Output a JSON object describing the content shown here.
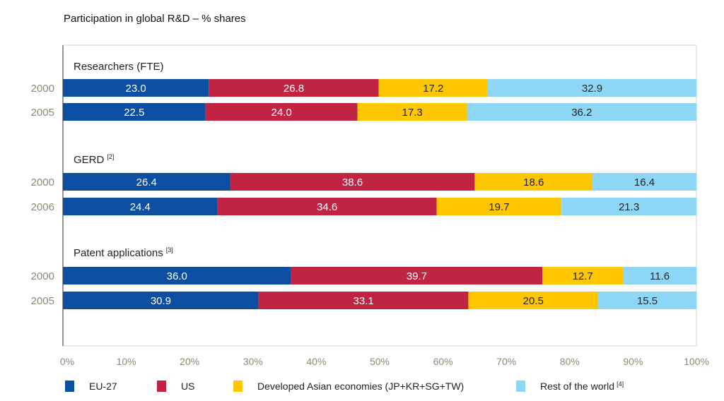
{
  "chart_data": {
    "type": "bar",
    "orientation": "horizontal-stacked",
    "title": "Participation in global R&D – % shares",
    "xlim": [
      0,
      100
    ],
    "x_ticks": [
      "0%",
      "10%",
      "20%",
      "30%",
      "40%",
      "50%",
      "60%",
      "70%",
      "80%",
      "90%",
      "100%"
    ],
    "grid": false,
    "legend_placement": "bottom",
    "series": [
      {
        "name": "EU-27",
        "color": "#0b4ea2"
      },
      {
        "name": "US",
        "color": "#c12443"
      },
      {
        "name": "Developed Asian economies (JP+KR+SG+TW)",
        "color": "#ffc700"
      },
      {
        "name": "Rest of the world",
        "footnote": "[4]",
        "color": "#8dd6f6"
      }
    ],
    "groups": [
      {
        "label": "Researchers (FTE)",
        "footnote": "",
        "rows": [
          {
            "year": "2000",
            "values": [
              23.0,
              26.8,
              17.2,
              32.9
            ]
          },
          {
            "year": "2005",
            "values": [
              22.5,
              24.0,
              17.3,
              36.2
            ]
          }
        ]
      },
      {
        "label": "GERD",
        "footnote": "[2]",
        "rows": [
          {
            "year": "2000",
            "values": [
              26.4,
              38.6,
              18.6,
              16.4
            ]
          },
          {
            "year": "2006",
            "values": [
              24.4,
              34.6,
              19.7,
              21.3
            ]
          }
        ]
      },
      {
        "label": "Patent applications",
        "footnote": "[3]",
        "rows": [
          {
            "year": "2000",
            "values": [
              36.0,
              39.7,
              12.7,
              11.6
            ]
          },
          {
            "year": "2005",
            "values": [
              30.9,
              33.1,
              20.5,
              15.5
            ]
          }
        ]
      }
    ]
  }
}
